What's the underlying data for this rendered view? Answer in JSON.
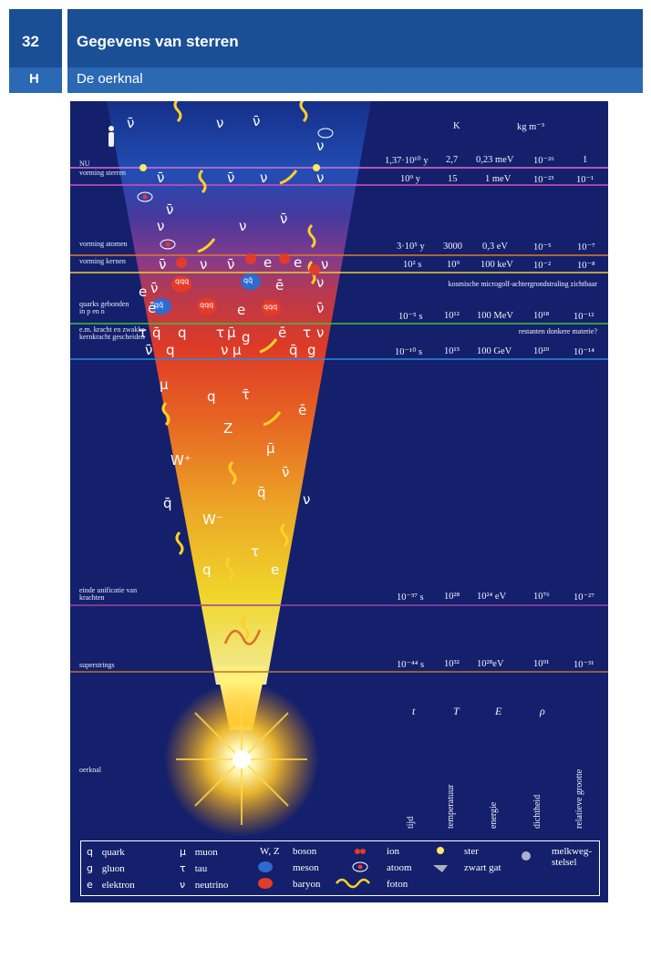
{
  "header": {
    "page_number": "32",
    "section_letter": "H",
    "title": "Gegevens van sterren",
    "subtitle": "De oerknal"
  },
  "units": {
    "K": "K",
    "density": "kg m⁻³"
  },
  "epochs": [
    {
      "label": "NU",
      "time": "1,37·10¹⁰ y",
      "T": "2,7",
      "E": "0,23 meV",
      "rho": "10⁻²⁶",
      "size": "1"
    },
    {
      "label": "vorming sterren",
      "time": "10⁹ y",
      "T": "15",
      "E": "1 meV",
      "rho": "10⁻²³",
      "size": "10⁻¹"
    },
    {
      "label": "vorming atomen",
      "time": "3·10⁵ y",
      "T": "3000",
      "E": "0,3 eV",
      "rho": "10⁻⁵",
      "size": "10⁻⁷"
    },
    {
      "label": "vorming kernen",
      "time": "10² s",
      "T": "10⁹",
      "E": "100 keV",
      "rho": "10⁻²",
      "size": "10⁻⁸"
    },
    {
      "label": "quarks gebonden in p en n",
      "time": "10⁻⁵ s",
      "T": "10¹²",
      "E": "100 MeV",
      "rho": "10¹⁸",
      "size": "10⁻¹²"
    },
    {
      "label": "e.m. kracht en zwakke kernkracht gescheiden",
      "time": "10⁻¹⁰ s",
      "T": "10¹⁵",
      "E": "100 GeV",
      "rho": "10²⁹",
      "size": "10⁻¹⁴"
    },
    {
      "label": "einde unificatie van krachten",
      "time": "10⁻³⁷ s",
      "T": "10²⁸",
      "E": "10²⁴ eV",
      "rho": "10⁷⁶",
      "size": "10⁻²⁷"
    },
    {
      "label": "superstrings",
      "time": "10⁻⁴⁴ s",
      "T": "10³²",
      "E": "10²⁸eV",
      "rho": "10⁹¹",
      "size": "10⁻³¹"
    }
  ],
  "notes": {
    "cmb": "kosmische microgolf-achtergrondstraling zichtbaar",
    "dark_matter": "restanten donkere materie?"
  },
  "oerknal_label": "oerknal",
  "column_symbols": [
    "t",
    "T",
    "E",
    "ρ"
  ],
  "column_names": [
    "tijd",
    "temperatuur",
    "energie",
    "dichtheid",
    "relatieve grootte"
  ],
  "particles": {
    "antinu": "ν̄",
    "nu": "ν",
    "e": "e",
    "ebar": "ē",
    "q": "q",
    "qbar": "q̄",
    "tau": "τ",
    "taubar": "τ̄",
    "mu": "μ",
    "mubar": "μ̄",
    "g": "g",
    "Z": "Z",
    "Wplus": "W⁺",
    "Wminus": "W⁻",
    "qq_meson": "qq̄",
    "qqq": "qqq"
  },
  "legend": {
    "quark": "quark",
    "gluon": "gluon",
    "elektron": "elektron",
    "muon": "muon",
    "tau": "tau",
    "neutrino": "neutrino",
    "wz": "W, Z",
    "boson": "boson",
    "meson": "meson",
    "baryon": "baryon",
    "ion": "ion",
    "atoom": "atoom",
    "foton": "foton",
    "ster": "ster",
    "zwart_gat": "zwart gat",
    "melkweg": "melkweg-stelsel",
    "sym_q": "q",
    "sym_g": "g",
    "sym_e": "e",
    "sym_mu": "μ",
    "sym_tau": "τ",
    "sym_nu": "ν"
  },
  "colors": {
    "header_dark": "#1a4f95",
    "header_light": "#2b69b5",
    "panel": "#14206b"
  }
}
